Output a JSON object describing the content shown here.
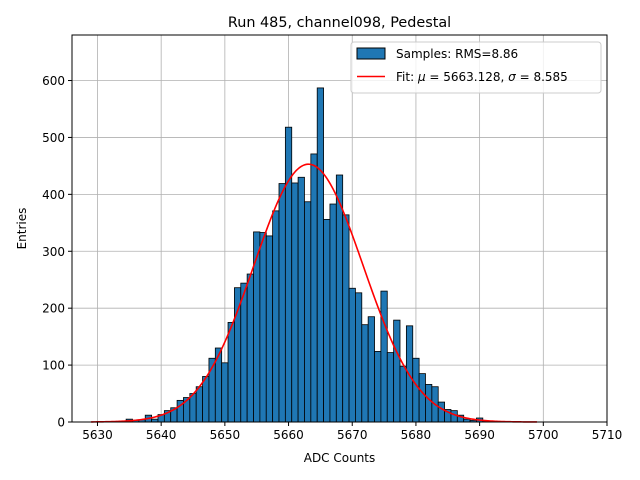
{
  "chart_data": {
    "type": "bar",
    "title": "Run 485, channel098, Pedestal",
    "xlabel": "ADC Counts",
    "ylabel": "Entries",
    "xlim": [
      5626,
      5710
    ],
    "ylim": [
      0,
      680
    ],
    "x_ticks": [
      "5630",
      "5640",
      "5650",
      "5660",
      "5670",
      "5680",
      "5690",
      "5700",
      "5710"
    ],
    "y_ticks": [
      "0",
      "100",
      "200",
      "300",
      "400",
      "500",
      "600"
    ],
    "grid": true,
    "legend_position": "top-right",
    "bin_width": 1,
    "histogram": {
      "name": "Samples: RMS=8.86",
      "color": "#1f77b4",
      "edge_color": "#000000",
      "bins": [
        [
          5635,
          5
        ],
        [
          5636,
          3
        ],
        [
          5637,
          4
        ],
        [
          5638,
          12
        ],
        [
          5639,
          5
        ],
        [
          5640,
          13
        ],
        [
          5641,
          20
        ],
        [
          5642,
          25
        ],
        [
          5643,
          38
        ],
        [
          5644,
          43
        ],
        [
          5645,
          50
        ],
        [
          5646,
          62
        ],
        [
          5647,
          80
        ],
        [
          5648,
          112
        ],
        [
          5649,
          130
        ],
        [
          5650,
          104
        ],
        [
          5651,
          175
        ],
        [
          5652,
          236
        ],
        [
          5653,
          244
        ],
        [
          5654,
          260
        ],
        [
          5655,
          334
        ],
        [
          5656,
          333
        ],
        [
          5657,
          327
        ],
        [
          5658,
          371
        ],
        [
          5659,
          419
        ],
        [
          5660,
          518
        ],
        [
          5661,
          420
        ],
        [
          5662,
          430
        ],
        [
          5663,
          387
        ],
        [
          5664,
          471
        ],
        [
          5665,
          587
        ],
        [
          5666,
          356
        ],
        [
          5667,
          383
        ],
        [
          5668,
          434
        ],
        [
          5669,
          364
        ],
        [
          5670,
          235
        ],
        [
          5671,
          227
        ],
        [
          5672,
          171
        ],
        [
          5673,
          185
        ],
        [
          5674,
          124
        ],
        [
          5675,
          230
        ],
        [
          5676,
          122
        ],
        [
          5677,
          179
        ],
        [
          5678,
          98
        ],
        [
          5679,
          169
        ],
        [
          5680,
          112
        ],
        [
          5681,
          85
        ],
        [
          5682,
          66
        ],
        [
          5683,
          62
        ],
        [
          5684,
          35
        ],
        [
          5685,
          22
        ],
        [
          5686,
          20
        ],
        [
          5687,
          12
        ],
        [
          5688,
          5
        ],
        [
          5689,
          3
        ],
        [
          5690,
          7
        ],
        [
          5691,
          2
        ]
      ]
    },
    "fit": {
      "name": "Fit: μ = 5663.128, σ = 8.585",
      "legend_prefix": "Fit: ",
      "legend_mu_symbol": "μ",
      "legend_mu_value": " = 5663.128, ",
      "legend_sigma_symbol": "σ",
      "legend_sigma_value": " = 8.585",
      "mu": 5663.128,
      "sigma": 8.585,
      "amplitude": 453,
      "x_range": [
        5629,
        5699
      ],
      "color": "#ff0000"
    },
    "grid_color": "#b0b0b0"
  }
}
